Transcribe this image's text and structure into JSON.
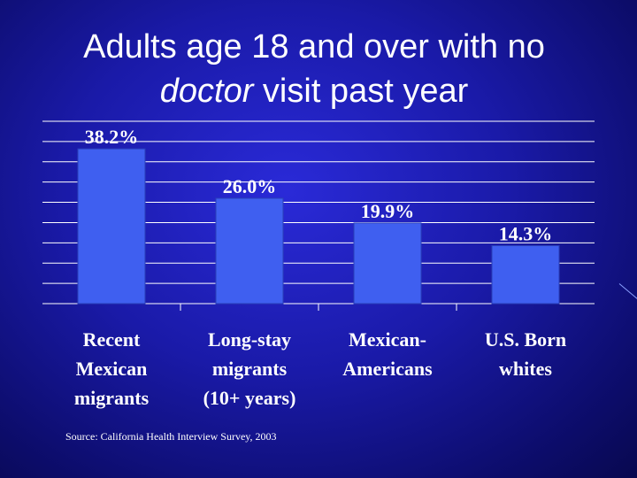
{
  "slide": {
    "title_part1": "Adults age 18 and over with no",
    "title_em": "doctor",
    "title_part2": " visit past year",
    "source": "Source: California Health Interview Survey, 2003"
  },
  "chart_data": {
    "type": "bar",
    "categories": [
      [
        "Recent",
        "Mexican",
        "migrants"
      ],
      [
        "Long-stay",
        "migrants",
        "(10+ years)"
      ],
      [
        "Mexican-",
        "Americans"
      ],
      [
        "U.S. Born",
        "whites"
      ]
    ],
    "values": [
      38.2,
      26.0,
      19.9,
      14.3
    ],
    "data_labels": [
      "38.2%",
      "26.0%",
      "19.9%",
      "14.3%"
    ],
    "ylim": [
      0,
      45
    ],
    "grid": true,
    "colors": {
      "bar": "#3f5ff0",
      "bar_edge": "#2a3fb8",
      "grid": "#ffffff",
      "text": "#ffffff"
    }
  }
}
